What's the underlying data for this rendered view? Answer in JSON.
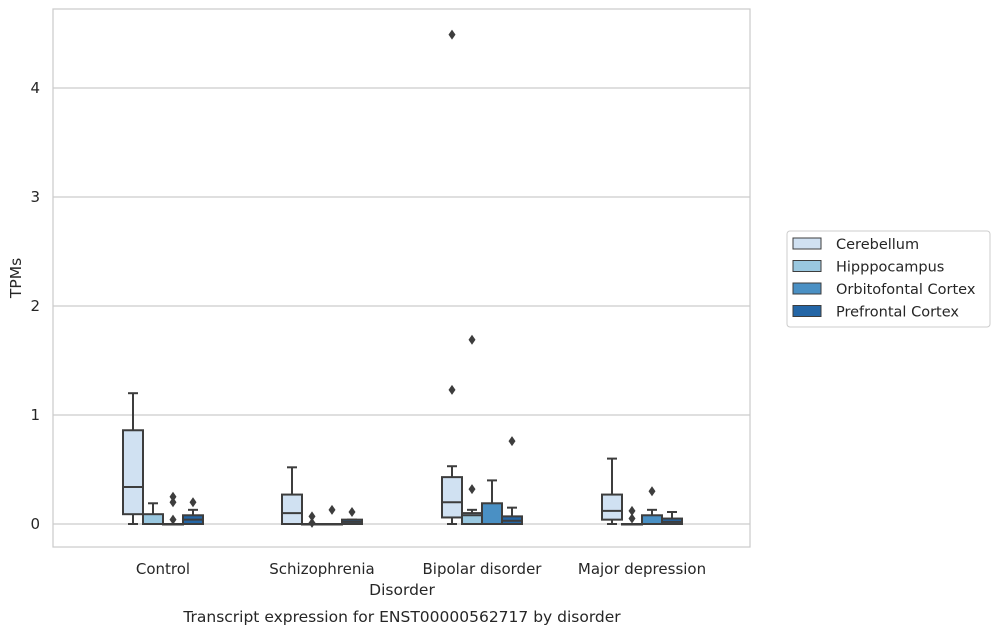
{
  "chart_data": {
    "type": "box",
    "title": "Transcript expression for ENST00000562717 by disorder",
    "xlabel": "Disorder",
    "ylabel": "TPMs",
    "categories": [
      "Control",
      "Schizophrenia",
      "Bipolar disorder",
      "Major depression"
    ],
    "yticks": [
      0,
      1,
      2,
      3,
      4
    ],
    "ylim": [
      -0.22,
      4.72
    ],
    "grid": true,
    "legend_position": "right",
    "series": [
      {
        "name": "Cerebellum",
        "color": "#d0e1f2",
        "boxes": [
          {
            "whisker_low": 0.0,
            "q1": 0.09,
            "median": 0.34,
            "q3": 0.86,
            "whisker_high": 1.2,
            "outliers": []
          },
          {
            "whisker_low": 0.0,
            "q1": 0.0,
            "median": 0.1,
            "q3": 0.27,
            "whisker_high": 0.52,
            "outliers": []
          },
          {
            "whisker_low": 0.0,
            "q1": 0.06,
            "median": 0.2,
            "q3": 0.43,
            "whisker_high": 0.53,
            "outliers": [
              4.49,
              1.23
            ]
          },
          {
            "whisker_low": 0.0,
            "q1": 0.04,
            "median": 0.12,
            "q3": 0.27,
            "whisker_high": 0.6,
            "outliers": []
          }
        ]
      },
      {
        "name": "Hipppocampus",
        "color": "#9ac8e0",
        "boxes": [
          {
            "whisker_low": 0.0,
            "q1": 0.0,
            "median": 0.0,
            "q3": 0.09,
            "whisker_high": 0.19,
            "outliers": []
          },
          {
            "whisker_low": 0.0,
            "q1": 0.0,
            "median": 0.0,
            "q3": 0.0,
            "whisker_high": 0.0,
            "outliers": [
              0.07,
              0.01
            ]
          },
          {
            "whisker_low": 0.0,
            "q1": 0.0,
            "median": 0.08,
            "q3": 0.1,
            "whisker_high": 0.13,
            "outliers": [
              1.69,
              0.32
            ]
          },
          {
            "whisker_low": 0.0,
            "q1": 0.0,
            "median": 0.0,
            "q3": 0.0,
            "whisker_high": 0.0,
            "outliers": [
              0.12,
              0.05
            ]
          }
        ]
      },
      {
        "name": "Orbitofontal Cortex",
        "color": "#4a90c4",
        "boxes": [
          {
            "whisker_low": 0.0,
            "q1": 0.0,
            "median": 0.0,
            "q3": 0.0,
            "whisker_high": 0.0,
            "outliers": [
              0.25,
              0.2,
              0.04
            ]
          },
          {
            "whisker_low": 0.0,
            "q1": 0.0,
            "median": 0.0,
            "q3": 0.0,
            "whisker_high": 0.0,
            "outliers": [
              0.13
            ]
          },
          {
            "whisker_low": 0.0,
            "q1": 0.0,
            "median": 0.0,
            "q3": 0.19,
            "whisker_high": 0.4,
            "outliers": []
          },
          {
            "whisker_low": 0.0,
            "q1": 0.0,
            "median": 0.0,
            "q3": 0.08,
            "whisker_high": 0.13,
            "outliers": [
              0.3
            ]
          }
        ]
      },
      {
        "name": "Prefrontal Cortex",
        "color": "#2466a6",
        "boxes": [
          {
            "whisker_low": 0.0,
            "q1": 0.0,
            "median": 0.04,
            "q3": 0.08,
            "whisker_high": 0.13,
            "outliers": [
              0.2
            ]
          },
          {
            "whisker_low": 0.0,
            "q1": 0.0,
            "median": 0.02,
            "q3": 0.04,
            "whisker_high": 0.04,
            "outliers": [
              0.11
            ]
          },
          {
            "whisker_low": 0.0,
            "q1": 0.0,
            "median": 0.03,
            "q3": 0.07,
            "whisker_high": 0.15,
            "outliers": [
              0.76
            ]
          },
          {
            "whisker_low": 0.0,
            "q1": 0.0,
            "median": 0.02,
            "q3": 0.05,
            "whisker_high": 0.11,
            "outliers": []
          }
        ]
      }
    ]
  }
}
